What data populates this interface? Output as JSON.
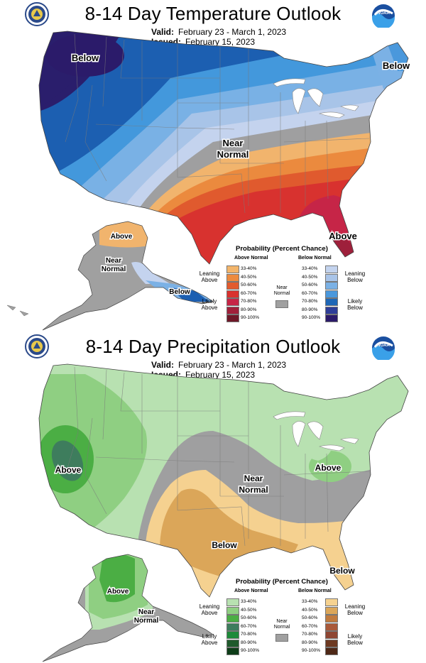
{
  "panels": [
    {
      "title": "8-14 Day Temperature Outlook",
      "valid_label": "Valid:",
      "valid_value": "February 23 - March 1, 2023",
      "issued_label": "Issued:",
      "issued_value": "February 15, 2023",
      "map_labels": {
        "below_nw": "Below",
        "below_ne": "Below",
        "near_normal_1": "Near",
        "near_normal_2": "Normal",
        "above_se": "Above",
        "ak_above": "Above",
        "ak_near_1": "Near",
        "ak_near_2": "Normal",
        "ak_below": "Below"
      },
      "legend": {
        "title": "Probability (Percent Chance)",
        "above_header": "Above Normal",
        "below_header": "Below Normal",
        "near_label": "Near Normal",
        "leaning_above": "Leaning Above",
        "likely_above": "Likely Above",
        "leaning_below": "Leaning Below",
        "likely_below": "Likely Below",
        "ranges": [
          "33-40%",
          "40-50%",
          "50-60%",
          "60-70%",
          "70-80%",
          "80-90%",
          "90-100%"
        ],
        "above_colors": [
          "#F3B56B",
          "#ED8B3F",
          "#E25B2E",
          "#D9322F",
          "#C72546",
          "#A1203A",
          "#6E1828"
        ],
        "below_colors": [
          "#C3D3EE",
          "#A9C4E8",
          "#7BB1E5",
          "#4A98DC",
          "#1E67B6",
          "#2E3E98",
          "#2B1B6A"
        ],
        "near_color": "#A0A0A0"
      }
    },
    {
      "title": "8-14 Day Precipitation Outlook",
      "valid_label": "Valid:",
      "valid_value": "February 23 - March 1, 2023",
      "issued_label": "Issued:",
      "issued_value": "February 15, 2023",
      "map_labels": {
        "above_west": "Above",
        "above_east": "Above",
        "near_normal_1": "Near",
        "near_normal_2": "Normal",
        "below_south": "Below",
        "below_fl": "Below",
        "ak_above": "Above",
        "ak_near_1": "Near",
        "ak_near_2": "Normal"
      },
      "legend": {
        "title": "Probability (Percent Chance)",
        "above_header": "Above Normal",
        "below_header": "Below Normal",
        "near_label": "Near Normal",
        "leaning_above": "Leaning Above",
        "likely_above": "Likely Above",
        "leaning_below": "Leaning Below",
        "likely_below": "Likely Below",
        "ranges": [
          "33-40%",
          "40-50%",
          "50-60%",
          "60-70%",
          "70-80%",
          "80-90%",
          "90-100%"
        ],
        "above_colors": [
          "#B8E1B1",
          "#8FCF82",
          "#4BAE44",
          "#3E7D5D",
          "#1E8A3A",
          "#1F5A2C",
          "#0E3D18"
        ],
        "below_colors": [
          "#F6D290",
          "#DBA659",
          "#C07A3E",
          "#A9593A",
          "#8E4633",
          "#6E3A22",
          "#4E2817"
        ],
        "near_color": "#A0A0A0"
      }
    }
  ]
}
